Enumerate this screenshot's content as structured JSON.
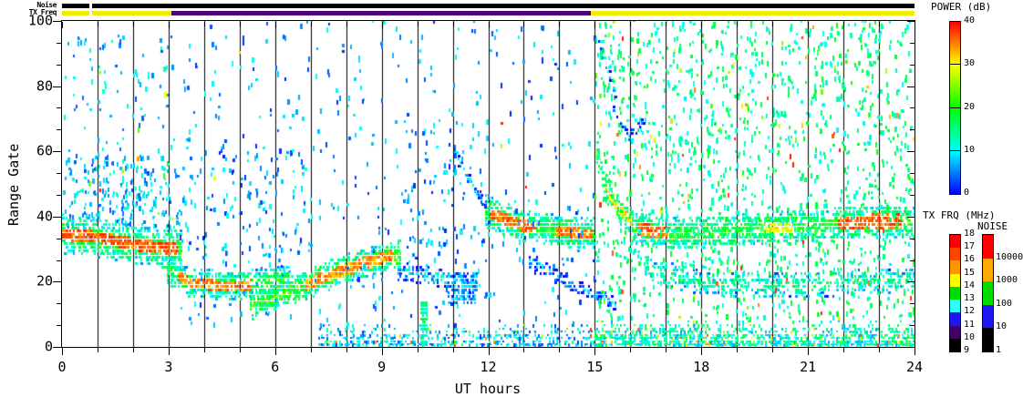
{
  "figure": {
    "top_bars": {
      "noise_label": "Noise",
      "txfreq_label": "TX Freq",
      "noise_segments": [
        {
          "t0": 0.0,
          "t1": 0.77,
          "color": "#000000"
        },
        {
          "t0": 0.85,
          "t1": 24.0,
          "color": "#000000"
        }
      ],
      "txfreq_segments": [
        {
          "t0": 0.0,
          "t1": 0.77,
          "color": "#f0ec00"
        },
        {
          "t0": 0.85,
          "t1": 3.08,
          "color": "#f0ec00"
        },
        {
          "t0": 3.08,
          "t1": 14.88,
          "color": "#4e0078"
        },
        {
          "t0": 14.88,
          "t1": 24.0,
          "color": "#f0ec00"
        }
      ]
    },
    "colorbars": {
      "power": {
        "title": "POWER (dB)",
        "tick_labels": [
          "40",
          "30",
          "20",
          "10",
          "0"
        ],
        "gradient_bottom_to_top": [
          "#0000ff",
          "#00ffff",
          "#00ff00",
          "#ffff00",
          "#ff0000"
        ],
        "inner_line_ticks": [
          30,
          20,
          10
        ],
        "min": 0,
        "max": 40
      },
      "txfrq": {
        "title": "TX FRQ (MHz)",
        "tick_labels": [
          "18",
          "17",
          "16",
          "15",
          "14",
          "13",
          "12",
          "11",
          "10",
          "9"
        ],
        "segment_colors_top_to_bottom": [
          "#ff0000",
          "#ff4400",
          "#ff9500",
          "#ffff00",
          "#00dc00",
          "#2cffff",
          "#1c16f0",
          "#420066",
          "#000000"
        ]
      },
      "noise": {
        "title": "NOISE",
        "tick_labels": [
          "10000",
          "1000",
          "100",
          "10",
          "1"
        ],
        "segment_colors_top_to_bottom": [
          "#ff0000",
          "#ffa800",
          "#00dc00",
          "#1c16f0",
          "#000000"
        ]
      }
    }
  },
  "chart_data": {
    "type": "heatmap",
    "title": "",
    "xlabel": "UT hours",
    "ylabel": "Range Gate",
    "xlim": [
      0,
      24
    ],
    "ylim": [
      0,
      100
    ],
    "x_major_ticks": [
      0,
      3,
      6,
      9,
      12,
      15,
      18,
      21,
      24
    ],
    "x_minor_per_hour": 1,
    "y_major_ticks": [
      0,
      20,
      40,
      60,
      80,
      100
    ],
    "y_minor_divisions": 3,
    "hourly_vertical_gridlines": true,
    "background": "#ffffff",
    "value_units": "dB",
    "value_range": [
      0,
      40
    ],
    "seed": 42,
    "features": [
      {
        "name": "dawn-band",
        "type": "band",
        "t0": 0.0,
        "t1": 3.3,
        "density": 0.8,
        "hw": 6,
        "power": 20,
        "center": [
          [
            0.0,
            34
          ],
          [
            1.0,
            33
          ],
          [
            2.0,
            31
          ],
          [
            3.3,
            29
          ]
        ],
        "cores": [
          {
            "t0": 0.0,
            "t1": 3.2,
            "power": 36,
            "hw": 1.8
          }
        ]
      },
      {
        "name": "low-band",
        "type": "band",
        "t0": 2.95,
        "t1": 6.35,
        "density": 0.8,
        "hw": 4.5,
        "power": 19,
        "center": [
          [
            2.95,
            23
          ],
          [
            3.6,
            19
          ],
          [
            4.8,
            18
          ],
          [
            5.8,
            19
          ],
          [
            6.35,
            21
          ]
        ],
        "cores": [
          {
            "t0": 3.2,
            "t1": 5.3,
            "power": 35,
            "hw": 1.6
          }
        ]
      },
      {
        "name": "rising-band",
        "type": "band",
        "t0": 5.3,
        "t1": 9.55,
        "density": 0.8,
        "hw": 4.5,
        "power": 21,
        "center": [
          [
            5.3,
            12
          ],
          [
            6.3,
            16
          ],
          [
            7.4,
            21
          ],
          [
            8.4,
            25
          ],
          [
            9.55,
            28
          ]
        ],
        "cores": [
          {
            "t0": 6.8,
            "t1": 9.35,
            "power": 34,
            "hw": 1.8
          }
        ]
      },
      {
        "name": "post-band-tail",
        "type": "band",
        "t0": 9.45,
        "t1": 11.65,
        "density": 0.55,
        "hw": 3,
        "power": 10,
        "center": [
          [
            9.45,
            23
          ],
          [
            10.4,
            21
          ],
          [
            11.65,
            18
          ]
        ]
      },
      {
        "name": "noon-patch",
        "type": "blob",
        "t0": 10.85,
        "t1": 11.7,
        "g0": 13,
        "g1": 22,
        "density": 0.5,
        "power": 6
      },
      {
        "name": "noon-entry-streak",
        "type": "band",
        "t0": 11.05,
        "t1": 12.05,
        "density": 0.55,
        "hw": 2.2,
        "power": 9,
        "center": [
          [
            11.05,
            59
          ],
          [
            11.5,
            49
          ],
          [
            12.05,
            41
          ]
        ]
      },
      {
        "name": "midday-band",
        "type": "band",
        "t0": 11.9,
        "t1": 15.0,
        "density": 0.85,
        "hw": 5,
        "power": 20,
        "center": [
          [
            11.9,
            41
          ],
          [
            12.8,
            37
          ],
          [
            13.8,
            35
          ],
          [
            15.0,
            34
          ]
        ],
        "cores": [
          {
            "t0": 12.05,
            "t1": 13.35,
            "power": 36,
            "hw": 1.8
          },
          {
            "t0": 13.9,
            "t1": 14.95,
            "power": 35,
            "hw": 1.6
          }
        ]
      },
      {
        "name": "afternoon-tail",
        "type": "band",
        "t0": 13.15,
        "t1": 15.6,
        "density": 0.45,
        "hw": 2.4,
        "power": 7,
        "center": [
          [
            13.15,
            26
          ],
          [
            14.2,
            19
          ],
          [
            15.6,
            12
          ]
        ]
      },
      {
        "name": "fifteen-curve",
        "type": "band",
        "t0": 15.05,
        "t1": 16.15,
        "density": 0.8,
        "hw": 4,
        "power": 22,
        "center": [
          [
            15.05,
            58
          ],
          [
            15.35,
            47
          ],
          [
            15.7,
            41
          ],
          [
            16.15,
            37
          ]
        ],
        "cores": [
          {
            "t0": 15.35,
            "t1": 16.15,
            "power": 31,
            "hw": 1.6
          }
        ]
      },
      {
        "name": "evening-band",
        "type": "band",
        "t0": 16.05,
        "t1": 24.0,
        "density": 0.75,
        "hw": 5,
        "power": 20,
        "center": [
          [
            16.05,
            36
          ],
          [
            17.0,
            34
          ],
          [
            18.5,
            35
          ],
          [
            20.0,
            36
          ],
          [
            21.5,
            37
          ],
          [
            23.0,
            38
          ],
          [
            24.0,
            38
          ]
        ],
        "cores": [
          {
            "t0": 16.2,
            "t1": 17.1,
            "power": 36,
            "hw": 2.0
          },
          {
            "t0": 19.7,
            "t1": 20.6,
            "power": 29,
            "hw": 1.6
          },
          {
            "t0": 21.85,
            "t1": 23.65,
            "power": 36,
            "hw": 2.2
          }
        ]
      },
      {
        "name": "evening-low-band",
        "type": "band",
        "t0": 16.4,
        "t1": 24.0,
        "density": 0.42,
        "hw": 4,
        "power": 15,
        "center": [
          [
            16.4,
            23
          ],
          [
            18.0,
            19
          ],
          [
            20.0,
            18
          ],
          [
            22.0,
            19
          ],
          [
            24.0,
            20
          ]
        ]
      },
      {
        "name": "day-floor-noise",
        "type": "floor",
        "t0": 7.2,
        "t1": 15.0,
        "gmax": 6,
        "density": 0.6,
        "power": 8,
        "warm": 0.06
      },
      {
        "name": "evening-floor-noise",
        "type": "floor",
        "t0": 15.0,
        "t1": 24.0,
        "gmax": 7,
        "density": 0.85,
        "power": 12,
        "warm": 0.08
      },
      {
        "name": "morning-upper-speckle",
        "type": "speckle",
        "t0": 0.0,
        "t1": 3.3,
        "g0": 36,
        "g1": 58,
        "density": 0.16,
        "power": 8,
        "warm": 0.03
      },
      {
        "name": "morning-high-speckle",
        "type": "speckle",
        "t0": 0.0,
        "t1": 3.3,
        "g0": 58,
        "g1": 97,
        "density": 0.035,
        "power": 8,
        "warm": 0.02
      },
      {
        "name": "early-morning-speckle",
        "type": "speckle",
        "t0": 3.3,
        "t1": 7.0,
        "g0": 25,
        "g1": 60,
        "density": 0.04,
        "power": 7,
        "warm": 0.01
      },
      {
        "name": "midday-speckle",
        "type": "speckle",
        "t0": 3.3,
        "t1": 15.0,
        "g0": 6,
        "g1": 100,
        "density": 0.022,
        "power": 6,
        "warm": 0.01
      },
      {
        "name": "upper-midday-speckle",
        "type": "speckle",
        "t0": 9.5,
        "t1": 12.0,
        "g0": 30,
        "g1": 70,
        "density": 0.03,
        "power": 6,
        "warm": 0.0
      },
      {
        "name": "evening-speckle",
        "type": "speckle",
        "t0": 15.0,
        "t1": 24.0,
        "g0": 8,
        "g1": 100,
        "density": 0.09,
        "power": 14,
        "warm": 0.08
      },
      {
        "name": "ten-utc-streak",
        "type": "blob",
        "t0": 10.1,
        "t1": 10.3,
        "g0": 0,
        "g1": 13,
        "density": 0.8,
        "power": 13
      },
      {
        "name": "fifteen-high-streak",
        "type": "band",
        "t0": 15.1,
        "t1": 15.6,
        "density": 0.6,
        "hw": 2,
        "power": 10,
        "center": [
          [
            15.1,
            94
          ],
          [
            15.35,
            84
          ],
          [
            15.6,
            75
          ]
        ]
      },
      {
        "name": "sixteen-u-curve",
        "type": "band",
        "t0": 15.5,
        "t1": 16.4,
        "density": 0.5,
        "hw": 1.6,
        "power": 6,
        "center": [
          [
            15.5,
            72
          ],
          [
            15.95,
            64
          ],
          [
            16.4,
            69
          ]
        ]
      }
    ]
  }
}
